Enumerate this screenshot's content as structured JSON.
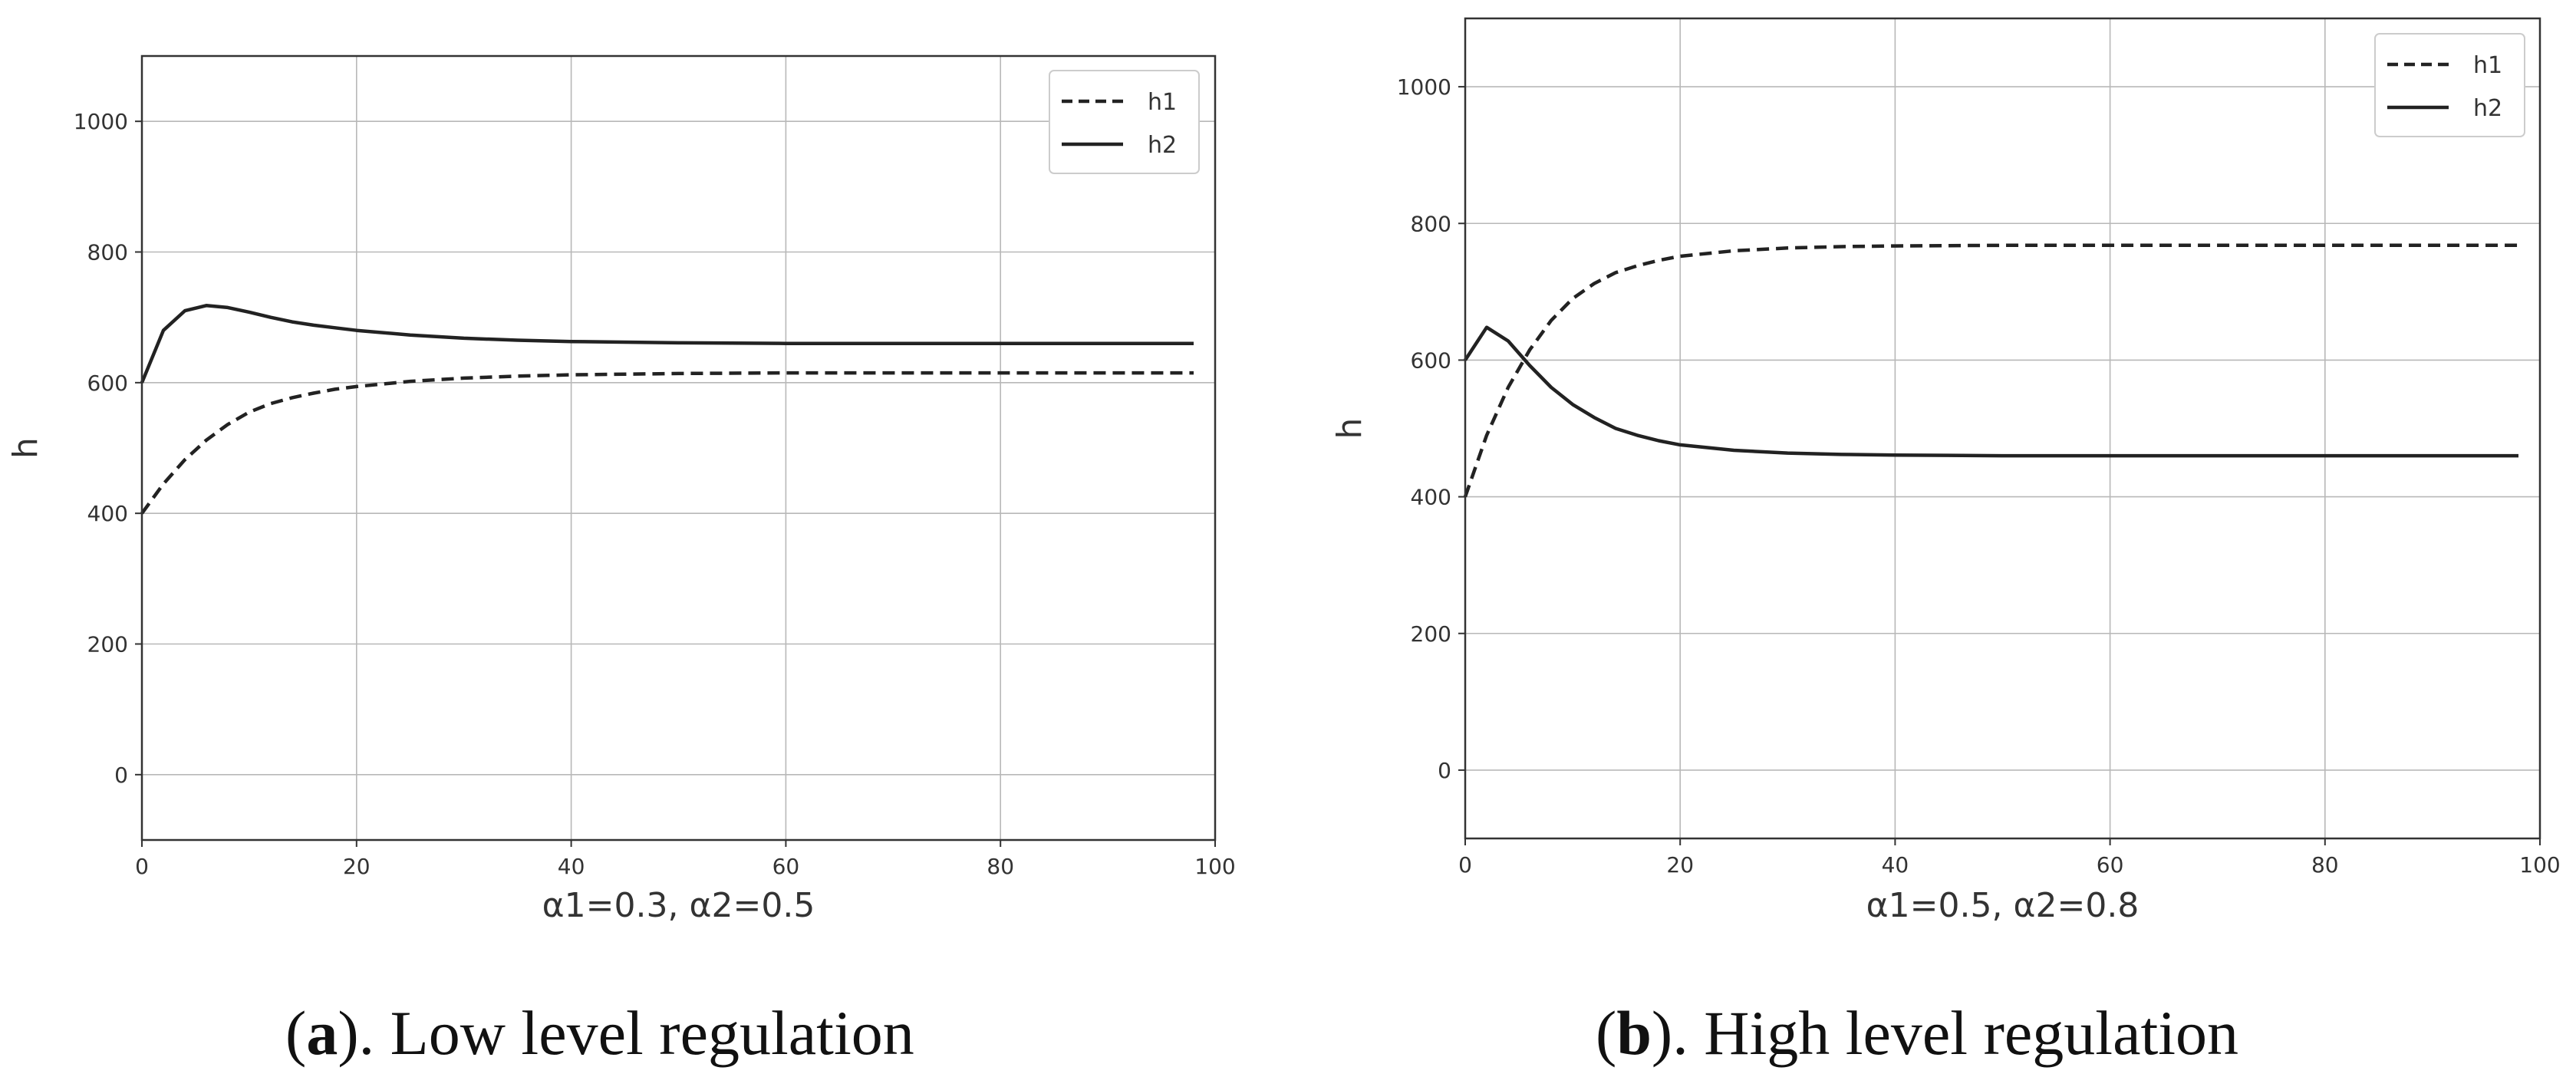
{
  "chart_data": [
    {
      "type": "line",
      "xlabel": "α1=0.3, α2=0.5",
      "ylabel": "h",
      "xlim": [
        0,
        100
      ],
      "ylim": [
        -100,
        1100
      ],
      "xticks": [
        0,
        20,
        40,
        60,
        80,
        100
      ],
      "yticks": [
        0,
        200,
        400,
        600,
        800,
        1000
      ],
      "grid": true,
      "legend_position": "top-right",
      "x": [
        0,
        2,
        4,
        6,
        8,
        10,
        12,
        14,
        16,
        18,
        20,
        25,
        30,
        35,
        40,
        50,
        60,
        70,
        80,
        90,
        98
      ],
      "series": [
        {
          "name": "h1",
          "style": "dashed",
          "values": [
            400,
            445,
            482,
            512,
            536,
            555,
            568,
            577,
            584,
            590,
            594,
            602,
            607,
            610,
            612,
            614,
            615,
            615,
            615,
            615,
            615
          ]
        },
        {
          "name": "h2",
          "style": "solid",
          "values": [
            600,
            680,
            710,
            718,
            715,
            708,
            700,
            693,
            688,
            684,
            680,
            673,
            668,
            665,
            663,
            661,
            660,
            660,
            660,
            660,
            660
          ]
        }
      ],
      "caption_letter": "a",
      "caption_text": ". Low level regulation"
    },
    {
      "type": "line",
      "xlabel": "α1=0.5, α2=0.8",
      "ylabel": "h",
      "xlim": [
        0,
        100
      ],
      "ylim": [
        -100,
        1100
      ],
      "xticks": [
        0,
        20,
        40,
        60,
        80,
        100
      ],
      "yticks": [
        0,
        200,
        400,
        600,
        800,
        1000
      ],
      "grid": true,
      "legend_position": "top-right",
      "x": [
        0,
        2,
        4,
        6,
        8,
        10,
        12,
        14,
        16,
        18,
        20,
        25,
        30,
        35,
        40,
        50,
        60,
        70,
        80,
        90,
        98
      ],
      "series": [
        {
          "name": "h1",
          "style": "dashed",
          "values": [
            400,
            490,
            560,
            615,
            658,
            690,
            712,
            728,
            738,
            746,
            752,
            760,
            764,
            766,
            767,
            768,
            768,
            768,
            768,
            768,
            768
          ]
        },
        {
          "name": "h2",
          "style": "solid",
          "values": [
            600,
            648,
            628,
            592,
            560,
            535,
            516,
            500,
            490,
            482,
            476,
            468,
            464,
            462,
            461,
            460,
            460,
            460,
            460,
            460,
            460
          ]
        }
      ],
      "caption_letter": "b",
      "caption_text": ". High level regulation"
    }
  ]
}
